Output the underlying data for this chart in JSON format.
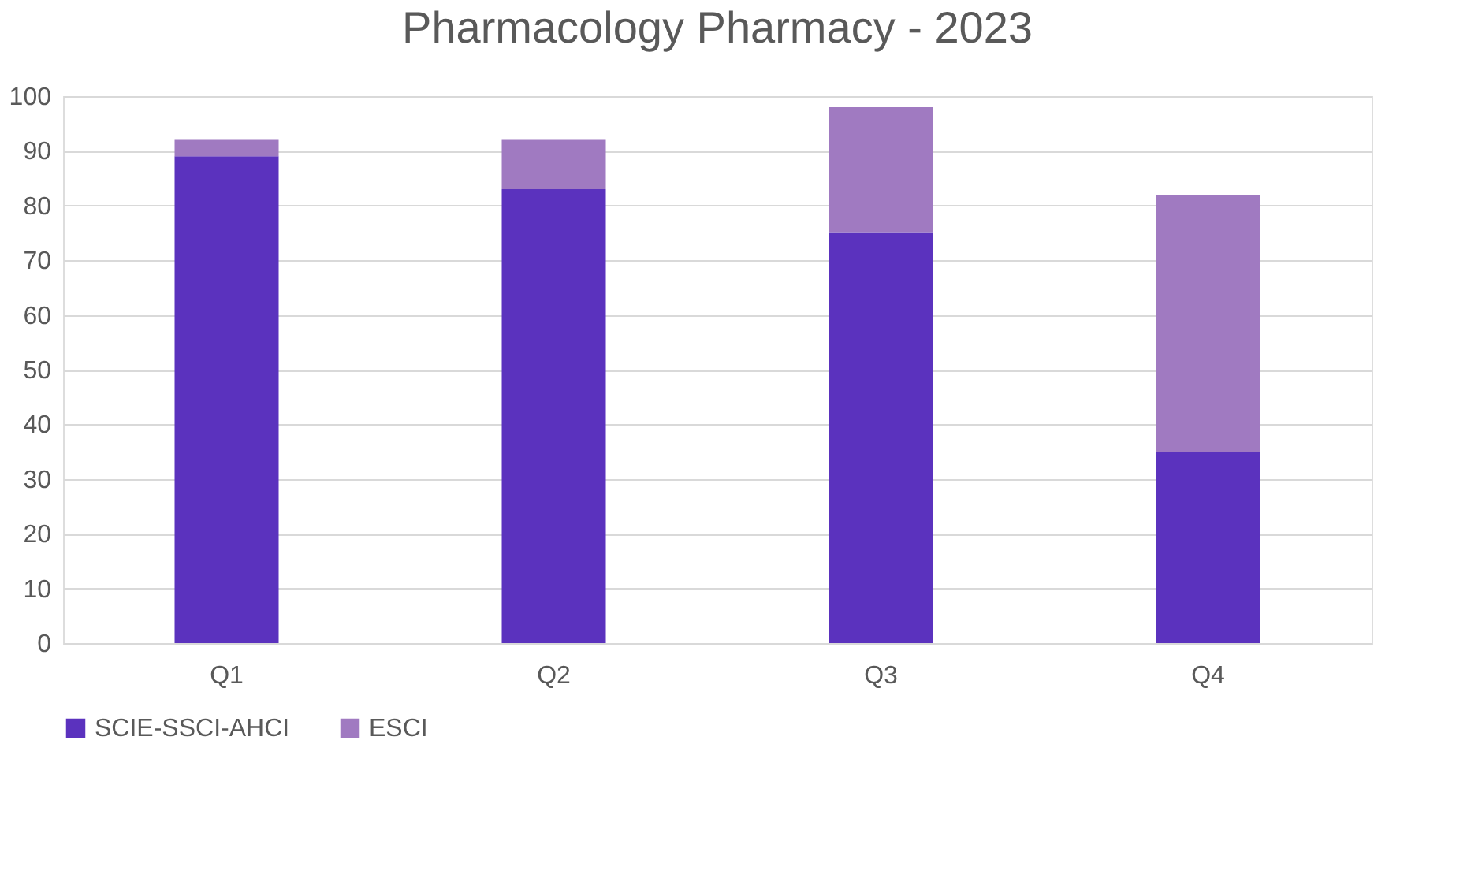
{
  "chart_data": {
    "type": "bar",
    "title": "Pharmacology Pharmacy - 2023",
    "categories": [
      "Q1",
      "Q2",
      "Q3",
      "Q4"
    ],
    "series": [
      {
        "name": "SCIE-SSCI-AHCI",
        "color": "#5b32be",
        "values": [
          89,
          83,
          75,
          35
        ]
      },
      {
        "name": "ESCI",
        "color": "#a07ac1",
        "values": [
          3,
          9,
          23,
          47
        ]
      }
    ],
    "stacked": true,
    "ylim": [
      0,
      100
    ],
    "yticks": [
      0,
      10,
      20,
      30,
      40,
      50,
      60,
      70,
      80,
      90,
      100
    ],
    "grid": "y",
    "legend": "bottom"
  }
}
